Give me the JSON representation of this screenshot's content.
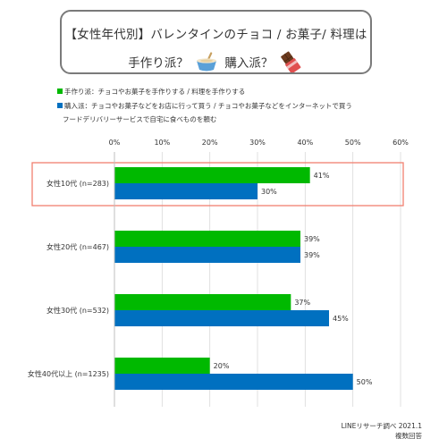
{
  "title": {
    "line1": "【女性年代別】バレンタインのチョコ / お菓子/ 料理は",
    "part_handmade": "手作り派？",
    "part_buy": "購入派？"
  },
  "icons": [
    "mixing-bowl-icon",
    "chocolate-bar-icon"
  ],
  "legend": {
    "handmade": "手作り派：チョコやお菓子を手作りする / 料理を手作りする",
    "buy_line1": "購入派：チョコやお菓子などをお店に行って買う / チョコやお菓子などをインターネットで買う",
    "buy_line2": "フードデリバリーサービスで自宅に食べものを頼む"
  },
  "colors": {
    "handmade": "#00b900",
    "buy": "#0070c0",
    "highlight": "#f08070"
  },
  "source": {
    "line1": "LINEリサーチ調べ 2021.1",
    "line2": "複数回答"
  },
  "chart_data": {
    "type": "bar",
    "orientation": "horizontal",
    "categories": [
      "女性10代 (n=283)",
      "女性20代 (n=467)",
      "女性30代 (n=532)",
      "女性40代以上 (n=1235)"
    ],
    "series": [
      {
        "name": "手作り派",
        "values": [
          41,
          39,
          37,
          20
        ],
        "labels": [
          "41%",
          "39%",
          "37%",
          "20%"
        ]
      },
      {
        "name": "購入派",
        "values": [
          30,
          39,
          45,
          50
        ],
        "labels": [
          "30%",
          "39%",
          "45%",
          "50%"
        ]
      }
    ],
    "x_ticks": [
      "0%",
      "10%",
      "20%",
      "30%",
      "40%",
      "50%",
      "60%"
    ],
    "xlim": [
      0,
      60
    ],
    "grid": true,
    "highlighted_category": "女性10代 (n=283)"
  }
}
